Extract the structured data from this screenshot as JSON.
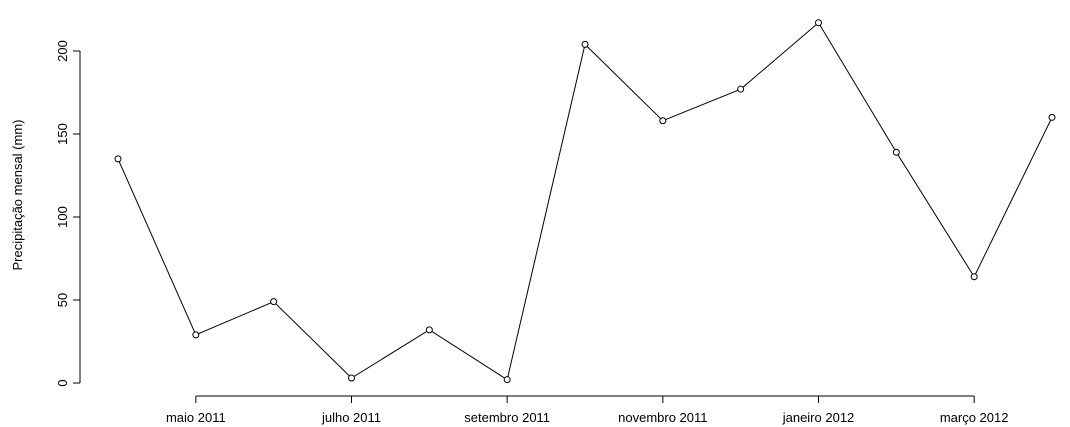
{
  "chart_data": {
    "type": "line",
    "title": "",
    "xlabel": "",
    "ylabel": "Precipitação mensal (mm)",
    "x": [
      "2011-04",
      "2011-05",
      "2011-06",
      "2011-07",
      "2011-08",
      "2011-09",
      "2011-10",
      "2011-11",
      "2011-12",
      "2012-01",
      "2012-02",
      "2012-03",
      "2012-04"
    ],
    "series": [
      {
        "values": [
          135,
          29,
          49,
          3,
          32,
          2,
          204,
          158,
          177,
          217,
          139,
          64,
          160
        ]
      }
    ],
    "x_tick_labels": [
      {
        "x": "2011-05",
        "label": "maio 2011"
      },
      {
        "x": "2011-07",
        "label": "julho 2011"
      },
      {
        "x": "2011-09",
        "label": "setembro 2011"
      },
      {
        "x": "2011-11",
        "label": "novembro 2011"
      },
      {
        "x": "2012-01",
        "label": "janeiro 2012"
      },
      {
        "x": "2012-03",
        "label": "março 2012"
      }
    ],
    "y_ticks": [
      0,
      50,
      100,
      150,
      200
    ],
    "ylim": [
      0,
      220
    ],
    "grid": false,
    "legend": "none",
    "marker": "open-circle",
    "line_color": "#000000"
  }
}
